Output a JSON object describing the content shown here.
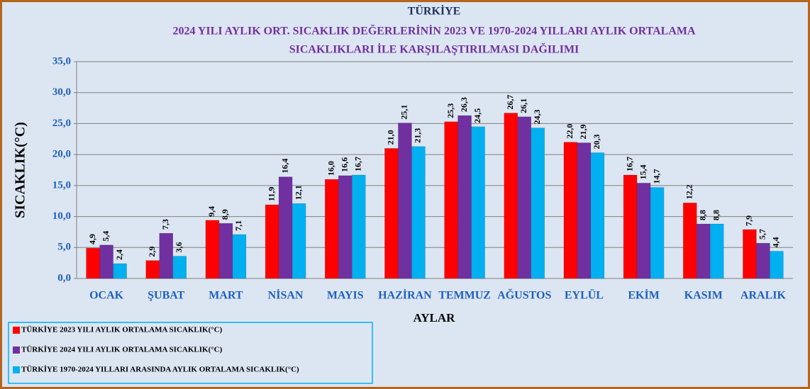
{
  "chart_data": {
    "type": "bar",
    "title": "TÜRKİYE",
    "subtitle": [
      "2024 YILI  AYLIK ORT. SICAKLIK DEĞERLERİNİN 2023 VE 1970-2024 YILLARI AYLIK ORTALAMA",
      "SICAKLIKLARI İLE KARŞILAŞTIRILMASI DAĞILIMI"
    ],
    "x_label": "AYLAR",
    "y_label": "SICAKLIK(°C)",
    "categories": [
      "OCAK",
      "ŞUBAT",
      "MART",
      "NİSAN",
      "MAYIS",
      "HAZİRAN",
      "TEMMUZ",
      "AĞUSTOS",
      "EYLÜL",
      "EKİM",
      "KASIM",
      "ARALIK"
    ],
    "series": [
      {
        "name": "TÜRKİYE  2023 YILI AYLIK ORTALAMA SICAKLIK(°C)",
        "color": "#ff0000",
        "values": [
          4.9,
          2.9,
          9.4,
          11.9,
          16.0,
          21.0,
          25.3,
          26.7,
          22.0,
          16.7,
          12.2,
          7.9
        ],
        "value_labels": [
          "4,9",
          "2,9",
          "9,4",
          "11,9",
          "16,0",
          "21,0",
          "25,3",
          "26,7",
          "22,0",
          "16,7",
          "12,2",
          "7,9"
        ]
      },
      {
        "name": "TÜRKİYE  2024 YILI AYLIK ORTALAMA SICAKLIK(°C)",
        "color": "#7030a0",
        "values": [
          5.4,
          7.3,
          8.9,
          16.4,
          16.6,
          25.1,
          26.3,
          26.1,
          21.9,
          15.4,
          8.8,
          5.7
        ],
        "value_labels": [
          "5,4",
          "7,3",
          "8,9",
          "16,4",
          "16,6",
          "25,1",
          "26,3",
          "26,1",
          "21,9",
          "15,4",
          "8,8",
          "5,7"
        ]
      },
      {
        "name": "TÜRKİYE  1970-2024 YILLARI ARASINDA AYLIK ORTALAMA SICAKLIK(°C)",
        "color": "#00b0f0",
        "values": [
          2.4,
          3.6,
          7.1,
          12.1,
          16.7,
          21.3,
          24.5,
          24.3,
          20.3,
          14.7,
          8.8,
          4.4
        ],
        "value_labels": [
          "2,4",
          "3,6",
          "7,1",
          "12,1",
          "16,7",
          "21,3",
          "24,5",
          "24,3",
          "20,3",
          "14,7",
          "8,8",
          "4,4"
        ]
      }
    ],
    "ylim": [
      0,
      35
    ],
    "yticks": [
      {
        "value": 0,
        "label": "0,0"
      },
      {
        "value": 5,
        "label": "5,0"
      },
      {
        "value": 10,
        "label": "10,0"
      },
      {
        "value": 15,
        "label": "15,0"
      },
      {
        "value": 20,
        "label": "20,0"
      },
      {
        "value": 25,
        "label": "25,0"
      },
      {
        "value": 30,
        "label": "30,0"
      },
      {
        "value": 35,
        "label": "35,0"
      }
    ],
    "grid": true,
    "legend": "bottom-left"
  }
}
